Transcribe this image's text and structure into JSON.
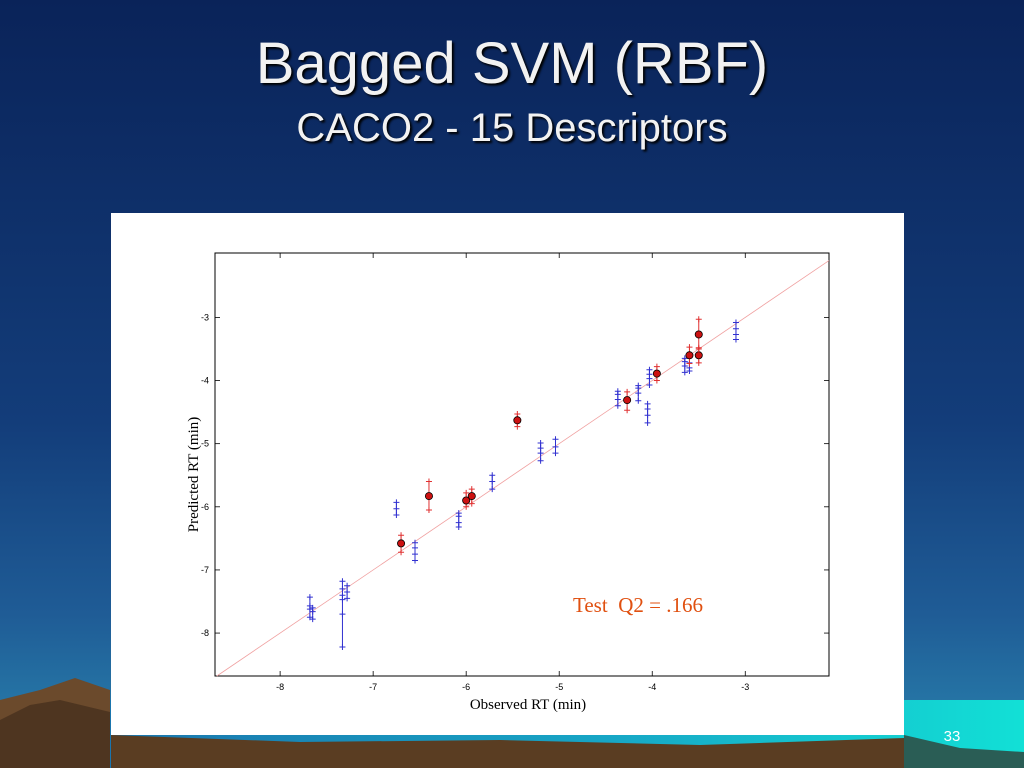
{
  "slide": {
    "title": "Bagged SVM (RBF)",
    "subtitle": "CACO2 - 15 Descriptors",
    "page_number": "33"
  },
  "colors": {
    "background_top": "#0a2359",
    "background_bottom": "#1c4f8d",
    "train_series": "#3030d0",
    "test_series": "#e03030",
    "test_marker_fill": "#cc1111",
    "annotation": "#e05010",
    "diagonal": "#f0a0a0"
  },
  "chart_data": {
    "type": "scatter",
    "title": "",
    "xlabel": "Observed RT (min)",
    "ylabel": "Predicted RT (min)",
    "xlim": [
      -8.7,
      -2.1
    ],
    "ylim": [
      -8.68,
      -1.98
    ],
    "xticks": [
      -8,
      -7,
      -6,
      -5,
      -4,
      -3
    ],
    "yticks": [
      -8,
      -7,
      -6,
      -5,
      -4,
      -3
    ],
    "grid": false,
    "annotation": "Test  Q2 = .166",
    "diagonal_line": "y = x",
    "series": [
      {
        "role": "train",
        "marker": "plus with vertical range",
        "points": [
          {
            "x": -7.68,
            "y": [
              -7.75,
              -7.62,
              -7.57,
              -7.43
            ]
          },
          {
            "x": -7.65,
            "y": [
              -7.78,
              -7.66,
              -7.6
            ]
          },
          {
            "x": -7.33,
            "y": [
              -8.22,
              -7.7,
              -7.47,
              -7.4,
              -7.3,
              -7.18
            ]
          },
          {
            "x": -7.28,
            "y": [
              -7.45,
              -7.35,
              -7.25
            ]
          },
          {
            "x": -6.75,
            "y": [
              -6.13,
              -6.03,
              -5.93
            ]
          },
          {
            "x": -6.55,
            "y": [
              -6.85,
              -6.75,
              -6.65,
              -6.57
            ]
          },
          {
            "x": -6.08,
            "y": [
              -6.32,
              -6.25,
              -6.15,
              -6.1
            ]
          },
          {
            "x": -5.72,
            "y": [
              -5.72,
              -5.6,
              -5.5
            ]
          },
          {
            "x": -5.2,
            "y": [
              -5.27,
              -5.15,
              -5.07,
              -4.99
            ]
          },
          {
            "x": -5.04,
            "y": [
              -5.15,
              -5.05,
              -4.93
            ]
          },
          {
            "x": -4.37,
            "y": [
              -4.4,
              -4.3,
              -4.22,
              -4.17
            ]
          },
          {
            "x": -4.15,
            "y": [
              -4.32,
              -4.2,
              -4.12,
              -4.08
            ]
          },
          {
            "x": -4.05,
            "y": [
              -4.67,
              -4.55,
              -4.45,
              -4.37
            ]
          },
          {
            "x": -4.03,
            "y": [
              -4.07,
              -3.97,
              -3.9,
              -3.83
            ]
          },
          {
            "x": -3.65,
            "y": [
              -3.87,
              -3.77,
              -3.7,
              -3.65
            ]
          },
          {
            "x": -3.6,
            "y": [
              -3.85,
              -3.8,
              -3.72
            ]
          },
          {
            "x": -3.1,
            "y": [
              -3.35,
              -3.27,
              -3.18,
              -3.08
            ]
          }
        ]
      },
      {
        "role": "test",
        "marker": "filled circle with plus range",
        "points": [
          {
            "x": -6.7,
            "y": -6.58,
            "range": [
              -6.72,
              -6.45
            ]
          },
          {
            "x": -6.4,
            "y": -5.83,
            "range": [
              -6.05,
              -5.6
            ]
          },
          {
            "x": -6.0,
            "y": -5.9,
            "range": [
              -6.0,
              -5.78
            ]
          },
          {
            "x": -5.94,
            "y": -5.83,
            "range": [
              -5.95,
              -5.72
            ]
          },
          {
            "x": -5.45,
            "y": -4.63,
            "range": [
              -4.73,
              -4.53
            ]
          },
          {
            "x": -4.27,
            "y": -4.31,
            "range": [
              -4.47,
              -4.18
            ]
          },
          {
            "x": -3.95,
            "y": -3.89,
            "range": [
              -4.0,
              -3.78
            ]
          },
          {
            "x": -3.6,
            "y": -3.6,
            "range": [
              -3.73,
              -3.47
            ]
          },
          {
            "x": -3.5,
            "y": -3.6,
            "range": [
              -3.72,
              -3.48
            ]
          },
          {
            "x": -3.5,
            "y": -3.27,
            "range": [
              -3.5,
              -3.03
            ]
          }
        ]
      }
    ]
  }
}
